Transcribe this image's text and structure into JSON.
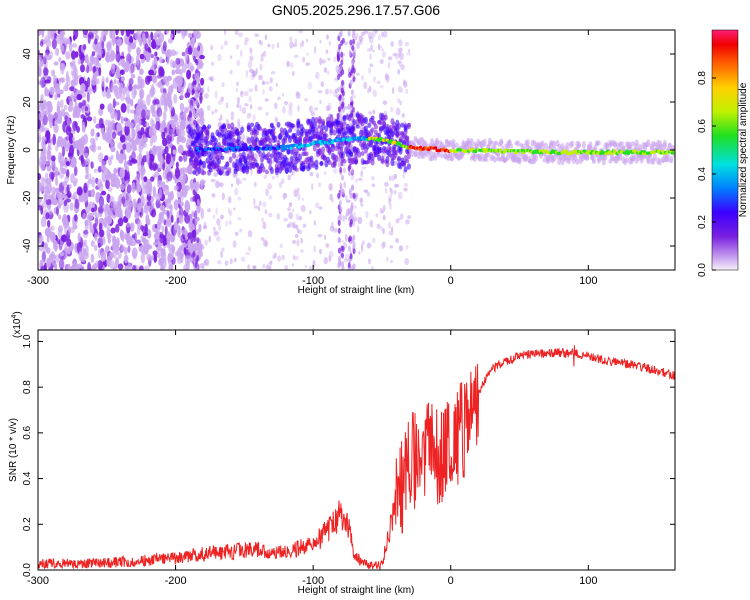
{
  "title": "GN05.2025.296.17.57.G06",
  "chart_data": [
    {
      "type": "heatmap",
      "xlabel": "Height of straight line (km)",
      "ylabel": "Frequency (Hz)",
      "xlim": [
        -300,
        163
      ],
      "ylim": [
        -50,
        50
      ],
      "x_ticks": [
        -300,
        -200,
        -100,
        0,
        100
      ],
      "y_ticks": [
        -40,
        -20,
        0,
        20,
        40
      ],
      "colorbar": {
        "label": "Normalized spectral amplitude",
        "range": [
          0,
          1
        ],
        "ticks": [
          "0.0",
          "0.2",
          "0.4",
          "0.6",
          "0.8"
        ],
        "colors": [
          "#f7f0fb",
          "#c9a4ef",
          "#7a1fe0",
          "#3b00ff",
          "#0080ff",
          "#00e0e0",
          "#20e020",
          "#c0f000",
          "#ffd000",
          "#ff6000",
          "#f00000",
          "#ff1e78"
        ]
      },
      "ridge": [
        {
          "x": -185,
          "y": 0
        },
        {
          "x": -120,
          "y": 1
        },
        {
          "x": -70,
          "y": 5
        },
        {
          "x": -45,
          "y": 4
        },
        {
          "x": -30,
          "y": 1
        },
        {
          "x": 0,
          "y": 0
        },
        {
          "x": 80,
          "y": -1
        },
        {
          "x": 163,
          "y": -1
        }
      ]
    },
    {
      "type": "line",
      "xlabel": "Height of straight line (km)",
      "ylabel": "SNR (10 * v/v)",
      "y_multiplier": "(x10",
      "y_multiplier_exp": "4",
      "xlim": [
        -300,
        163
      ],
      "ylim": [
        0,
        1.05
      ],
      "x_ticks": [
        -300,
        -200,
        -100,
        0,
        100
      ],
      "y_ticks": [
        "0.0",
        "0.2",
        "0.4",
        "0.6",
        "0.8",
        "1.0"
      ],
      "series": [
        {
          "color": "#ee2222",
          "points": [
            {
              "x": -300,
              "y": 0.03
            },
            {
              "x": -250,
              "y": 0.03
            },
            {
              "x": -200,
              "y": 0.05
            },
            {
              "x": -180,
              "y": 0.07
            },
            {
              "x": -140,
              "y": 0.09
            },
            {
              "x": -120,
              "y": 0.08
            },
            {
              "x": -100,
              "y": 0.11
            },
            {
              "x": -90,
              "y": 0.17
            },
            {
              "x": -80,
              "y": 0.25
            },
            {
              "x": -75,
              "y": 0.2
            },
            {
              "x": -70,
              "y": 0.06
            },
            {
              "x": -60,
              "y": 0.02
            },
            {
              "x": -50,
              "y": 0.02
            },
            {
              "x": -40,
              "y": 0.3
            },
            {
              "x": -30,
              "y": 0.45
            },
            {
              "x": -20,
              "y": 0.55
            },
            {
              "x": -10,
              "y": 0.5
            },
            {
              "x": 0,
              "y": 0.55
            },
            {
              "x": 10,
              "y": 0.62
            },
            {
              "x": 20,
              "y": 0.78
            },
            {
              "x": 30,
              "y": 0.88
            },
            {
              "x": 50,
              "y": 0.94
            },
            {
              "x": 70,
              "y": 0.95
            },
            {
              "x": 90,
              "y": 0.95
            },
            {
              "x": 110,
              "y": 0.92
            },
            {
              "x": 130,
              "y": 0.9
            },
            {
              "x": 150,
              "y": 0.87
            },
            {
              "x": 163,
              "y": 0.85
            }
          ]
        }
      ]
    }
  ]
}
